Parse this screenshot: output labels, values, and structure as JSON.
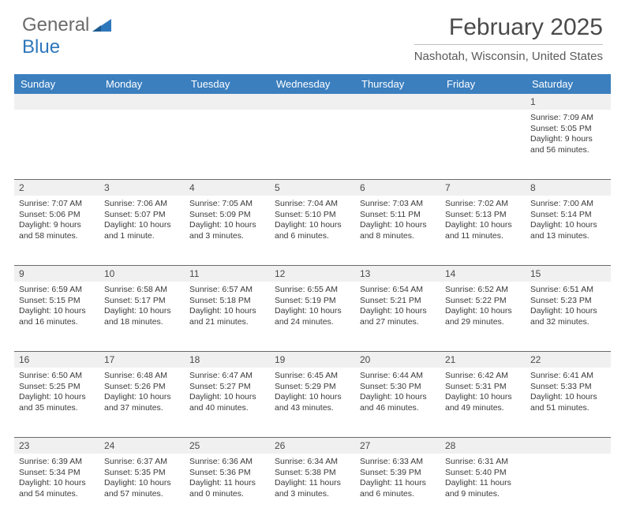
{
  "logo": {
    "text1": "General",
    "text2": "Blue"
  },
  "title": "February 2025",
  "location": "Nashotah, Wisconsin, United States",
  "colors": {
    "header_bg": "#3b7fbf",
    "header_text": "#ffffff",
    "daynum_bg": "#f0f0f0",
    "border": "#6b6b6b",
    "logo_gray": "#6b6b6b",
    "logo_blue": "#2f77bb"
  },
  "day_names": [
    "Sunday",
    "Monday",
    "Tuesday",
    "Wednesday",
    "Thursday",
    "Friday",
    "Saturday"
  ],
  "weeks": [
    {
      "nums": [
        "",
        "",
        "",
        "",
        "",
        "",
        "1"
      ],
      "cells": [
        null,
        null,
        null,
        null,
        null,
        null,
        {
          "sunrise": "Sunrise: 7:09 AM",
          "sunset": "Sunset: 5:05 PM",
          "day1": "Daylight: 9 hours",
          "day2": "and 56 minutes."
        }
      ]
    },
    {
      "nums": [
        "2",
        "3",
        "4",
        "5",
        "6",
        "7",
        "8"
      ],
      "cells": [
        {
          "sunrise": "Sunrise: 7:07 AM",
          "sunset": "Sunset: 5:06 PM",
          "day1": "Daylight: 9 hours",
          "day2": "and 58 minutes."
        },
        {
          "sunrise": "Sunrise: 7:06 AM",
          "sunset": "Sunset: 5:07 PM",
          "day1": "Daylight: 10 hours",
          "day2": "and 1 minute."
        },
        {
          "sunrise": "Sunrise: 7:05 AM",
          "sunset": "Sunset: 5:09 PM",
          "day1": "Daylight: 10 hours",
          "day2": "and 3 minutes."
        },
        {
          "sunrise": "Sunrise: 7:04 AM",
          "sunset": "Sunset: 5:10 PM",
          "day1": "Daylight: 10 hours",
          "day2": "and 6 minutes."
        },
        {
          "sunrise": "Sunrise: 7:03 AM",
          "sunset": "Sunset: 5:11 PM",
          "day1": "Daylight: 10 hours",
          "day2": "and 8 minutes."
        },
        {
          "sunrise": "Sunrise: 7:02 AM",
          "sunset": "Sunset: 5:13 PM",
          "day1": "Daylight: 10 hours",
          "day2": "and 11 minutes."
        },
        {
          "sunrise": "Sunrise: 7:00 AM",
          "sunset": "Sunset: 5:14 PM",
          "day1": "Daylight: 10 hours",
          "day2": "and 13 minutes."
        }
      ]
    },
    {
      "nums": [
        "9",
        "10",
        "11",
        "12",
        "13",
        "14",
        "15"
      ],
      "cells": [
        {
          "sunrise": "Sunrise: 6:59 AM",
          "sunset": "Sunset: 5:15 PM",
          "day1": "Daylight: 10 hours",
          "day2": "and 16 minutes."
        },
        {
          "sunrise": "Sunrise: 6:58 AM",
          "sunset": "Sunset: 5:17 PM",
          "day1": "Daylight: 10 hours",
          "day2": "and 18 minutes."
        },
        {
          "sunrise": "Sunrise: 6:57 AM",
          "sunset": "Sunset: 5:18 PM",
          "day1": "Daylight: 10 hours",
          "day2": "and 21 minutes."
        },
        {
          "sunrise": "Sunrise: 6:55 AM",
          "sunset": "Sunset: 5:19 PM",
          "day1": "Daylight: 10 hours",
          "day2": "and 24 minutes."
        },
        {
          "sunrise": "Sunrise: 6:54 AM",
          "sunset": "Sunset: 5:21 PM",
          "day1": "Daylight: 10 hours",
          "day2": "and 27 minutes."
        },
        {
          "sunrise": "Sunrise: 6:52 AM",
          "sunset": "Sunset: 5:22 PM",
          "day1": "Daylight: 10 hours",
          "day2": "and 29 minutes."
        },
        {
          "sunrise": "Sunrise: 6:51 AM",
          "sunset": "Sunset: 5:23 PM",
          "day1": "Daylight: 10 hours",
          "day2": "and 32 minutes."
        }
      ]
    },
    {
      "nums": [
        "16",
        "17",
        "18",
        "19",
        "20",
        "21",
        "22"
      ],
      "cells": [
        {
          "sunrise": "Sunrise: 6:50 AM",
          "sunset": "Sunset: 5:25 PM",
          "day1": "Daylight: 10 hours",
          "day2": "and 35 minutes."
        },
        {
          "sunrise": "Sunrise: 6:48 AM",
          "sunset": "Sunset: 5:26 PM",
          "day1": "Daylight: 10 hours",
          "day2": "and 37 minutes."
        },
        {
          "sunrise": "Sunrise: 6:47 AM",
          "sunset": "Sunset: 5:27 PM",
          "day1": "Daylight: 10 hours",
          "day2": "and 40 minutes."
        },
        {
          "sunrise": "Sunrise: 6:45 AM",
          "sunset": "Sunset: 5:29 PM",
          "day1": "Daylight: 10 hours",
          "day2": "and 43 minutes."
        },
        {
          "sunrise": "Sunrise: 6:44 AM",
          "sunset": "Sunset: 5:30 PM",
          "day1": "Daylight: 10 hours",
          "day2": "and 46 minutes."
        },
        {
          "sunrise": "Sunrise: 6:42 AM",
          "sunset": "Sunset: 5:31 PM",
          "day1": "Daylight: 10 hours",
          "day2": "and 49 minutes."
        },
        {
          "sunrise": "Sunrise: 6:41 AM",
          "sunset": "Sunset: 5:33 PM",
          "day1": "Daylight: 10 hours",
          "day2": "and 51 minutes."
        }
      ]
    },
    {
      "nums": [
        "23",
        "24",
        "25",
        "26",
        "27",
        "28",
        ""
      ],
      "cells": [
        {
          "sunrise": "Sunrise: 6:39 AM",
          "sunset": "Sunset: 5:34 PM",
          "day1": "Daylight: 10 hours",
          "day2": "and 54 minutes."
        },
        {
          "sunrise": "Sunrise: 6:37 AM",
          "sunset": "Sunset: 5:35 PM",
          "day1": "Daylight: 10 hours",
          "day2": "and 57 minutes."
        },
        {
          "sunrise": "Sunrise: 6:36 AM",
          "sunset": "Sunset: 5:36 PM",
          "day1": "Daylight: 11 hours",
          "day2": "and 0 minutes."
        },
        {
          "sunrise": "Sunrise: 6:34 AM",
          "sunset": "Sunset: 5:38 PM",
          "day1": "Daylight: 11 hours",
          "day2": "and 3 minutes."
        },
        {
          "sunrise": "Sunrise: 6:33 AM",
          "sunset": "Sunset: 5:39 PM",
          "day1": "Daylight: 11 hours",
          "day2": "and 6 minutes."
        },
        {
          "sunrise": "Sunrise: 6:31 AM",
          "sunset": "Sunset: 5:40 PM",
          "day1": "Daylight: 11 hours",
          "day2": "and 9 minutes."
        },
        null
      ]
    }
  ]
}
